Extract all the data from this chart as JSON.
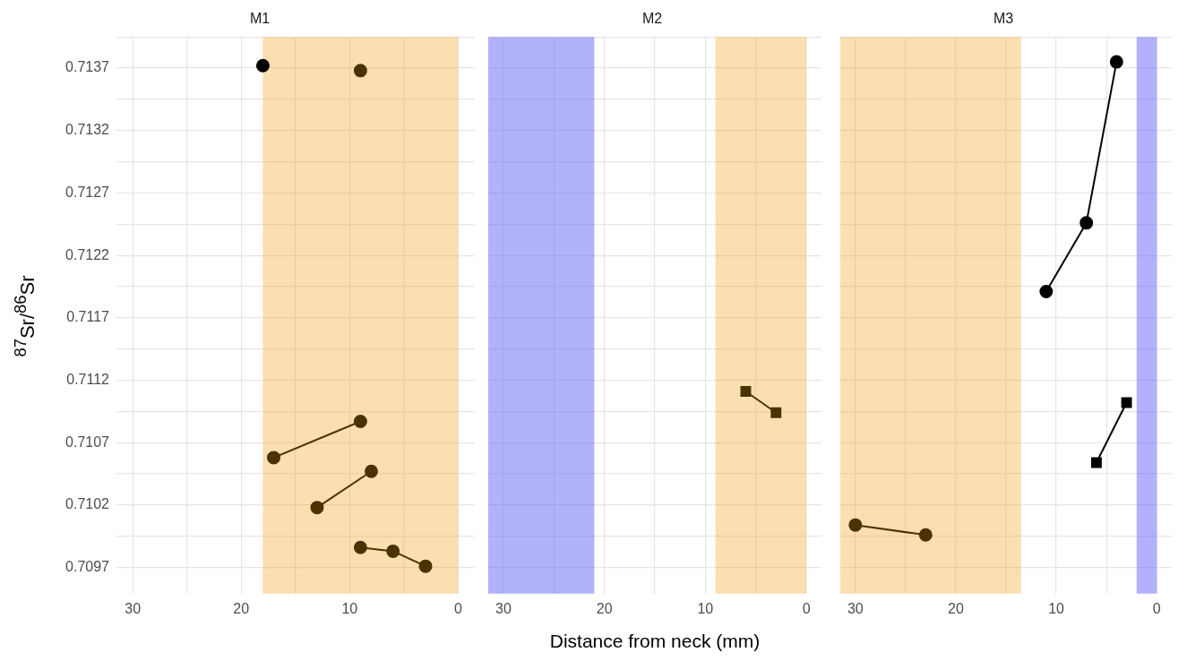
{
  "chart_data": [
    {
      "type": "line",
      "title": "M1",
      "ylabel": "$^{87}$Sr/$^{86}$Sr",
      "xlim": [
        31.5,
        -1.5
      ],
      "ylim": [
        0.70949,
        0.71395
      ],
      "xticks": [
        30,
        {
          "value": 25,
          "label": null
        },
        20,
        {
          "value": 15,
          "label": null
        },
        10,
        {
          "value": 5,
          "label": null
        },
        0
      ],
      "yticks": [
        0.7097,
        {
          "value": 0.70995,
          "label": null
        },
        0.7102,
        {
          "value": 0.71045,
          "label": null
        },
        0.7107,
        {
          "value": 0.71095,
          "label": null
        },
        0.7112,
        {
          "value": 0.71145,
          "label": null
        },
        0.7117,
        {
          "value": 0.71195,
          "label": null
        },
        0.7122,
        {
          "value": 0.71245,
          "label": null
        },
        0.7127,
        {
          "value": 0.71295,
          "label": null
        },
        0.7132,
        {
          "value": 0.71345,
          "label": null
        },
        0.7137,
        {
          "value": 0.71395,
          "label": null
        }
      ],
      "grid": true,
      "marker": "circle",
      "bands": [
        {
          "axis": "x",
          "from": 18,
          "to": 0,
          "color": "#f7b039"
        }
      ],
      "series": [
        {
          "color": "#000000",
          "x": [
            18
          ],
          "values": [
            0.71372
          ]
        },
        {
          "color": "#4b3300",
          "x": [
            9
          ],
          "values": [
            0.71368
          ]
        },
        {
          "color": "#4b3300",
          "x": [
            17,
            9
          ],
          "values": [
            0.71058,
            0.71087
          ]
        },
        {
          "color": "#4b3300",
          "x": [
            13,
            8
          ],
          "values": [
            0.71018,
            0.71047
          ]
        },
        {
          "color": "#4b3300",
          "x": [
            9,
            6,
            3
          ],
          "values": [
            0.70986,
            0.70983,
            0.70971
          ]
        }
      ]
    },
    {
      "type": "line",
      "title": "M2",
      "xlabel": "Distance from neck (mm)",
      "xlim": [
        31.5,
        -1.5
      ],
      "ylim": [
        0.70949,
        0.71395
      ],
      "tick_labels": "x",
      "xticks": [
        30,
        {
          "value": 25,
          "label": null
        },
        20,
        {
          "value": 15,
          "label": null
        },
        10,
        {
          "value": 5,
          "label": null
        },
        0
      ],
      "yticks": [
        0.7097,
        {
          "value": 0.70995,
          "label": null
        },
        0.7102,
        {
          "value": 0.71045,
          "label": null
        },
        0.7107,
        {
          "value": 0.71095,
          "label": null
        },
        0.7112,
        {
          "value": 0.71145,
          "label": null
        },
        0.7117,
        {
          "value": 0.71195,
          "label": null
        },
        0.7122,
        {
          "value": 0.71245,
          "label": null
        },
        0.7127,
        {
          "value": 0.71295,
          "label": null
        },
        0.7132,
        {
          "value": 0.71345,
          "label": null
        },
        0.7137,
        {
          "value": 0.71395,
          "label": null
        }
      ],
      "grid": true,
      "marker": "square",
      "bands": [
        {
          "axis": "x",
          "from": 31.5,
          "to": 21,
          "color": "#6464fa"
        },
        {
          "axis": "x",
          "from": 9,
          "to": 0,
          "color": "#f7b039"
        }
      ],
      "series": [
        {
          "color": "#4b3300",
          "x": [
            6,
            3
          ],
          "values": [
            0.71111,
            0.71094
          ]
        }
      ]
    },
    {
      "type": "line",
      "title": "M3",
      "xlim": [
        31.5,
        -1.5
      ],
      "ylim": [
        0.70949,
        0.71395
      ],
      "tick_labels": "x",
      "xticks": [
        30,
        {
          "value": 25,
          "label": null
        },
        20,
        {
          "value": 15,
          "label": null
        },
        10,
        {
          "value": 5,
          "label": null
        },
        0
      ],
      "yticks": [
        0.7097,
        {
          "value": 0.70995,
          "label": null
        },
        0.7102,
        {
          "value": 0.71045,
          "label": null
        },
        0.7107,
        {
          "value": 0.71095,
          "label": null
        },
        0.7112,
        {
          "value": 0.71145,
          "label": null
        },
        0.7117,
        {
          "value": 0.71195,
          "label": null
        },
        0.7122,
        {
          "value": 0.71245,
          "label": null
        },
        0.7127,
        {
          "value": 0.71295,
          "label": null
        },
        0.7132,
        {
          "value": 0.71345,
          "label": null
        },
        0.7137,
        {
          "value": 0.71395,
          "label": null
        }
      ],
      "grid": true,
      "marker": "circle",
      "bands": [
        {
          "axis": "x",
          "from": 31.5,
          "to": 13.5,
          "color": "#f7b039"
        },
        {
          "axis": "x",
          "from": 2,
          "to": 0,
          "color": "#6464fa"
        }
      ],
      "series": [
        {
          "color": "#4b3300",
          "x": [
            30,
            23
          ],
          "values": [
            0.71004,
            0.70996
          ]
        },
        {
          "color": "#000000",
          "x": [
            11,
            7,
            4
          ],
          "values": [
            0.71191,
            0.71246,
            0.71375
          ]
        },
        {
          "color": "#000000",
          "marker": "square",
          "x": [
            6,
            3
          ],
          "values": [
            0.71054,
            0.71102
          ]
        }
      ]
    }
  ]
}
